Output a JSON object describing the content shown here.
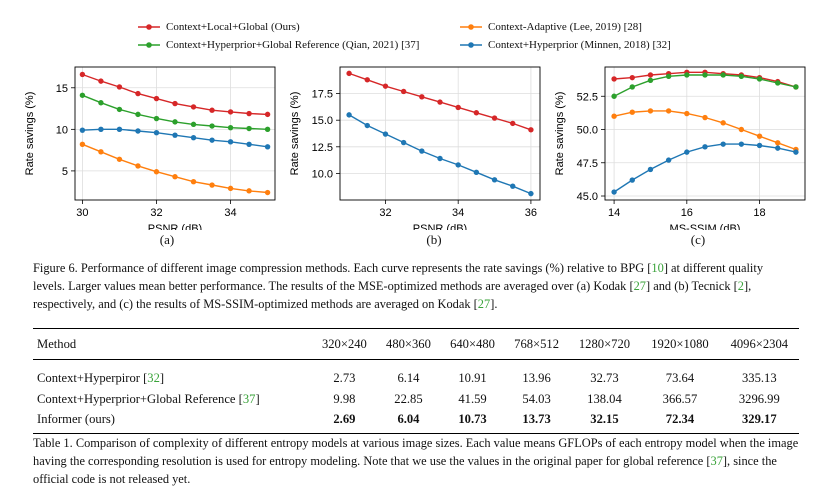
{
  "legend": {
    "items": [
      {
        "label": "Context+Local+Global (Ours)",
        "color": "#d62728"
      },
      {
        "label": "Context-Adaptive (Lee, 2019) [28]",
        "color": "#ff7f0e"
      },
      {
        "label": "Context+Hyperprior+Global Reference (Qian, 2021) [37]",
        "color": "#2ca02c"
      },
      {
        "label": "Context+Hyperprior (Minnen, 2018) [32]",
        "color": "#1f77b4"
      }
    ]
  },
  "chart_data": [
    {
      "type": "line",
      "panel_label": "(a)",
      "xlabel": "PSNR (dB)",
      "ylabel": "Rate savings (%)",
      "xlim": [
        29.8,
        35.2
      ],
      "ylim": [
        1.5,
        17.5
      ],
      "xticks": [
        30,
        32,
        34
      ],
      "yticks": [
        0,
        5,
        10,
        15
      ],
      "grid": true,
      "series": [
        {
          "name": "Context+Local+Global (Ours)",
          "color": "#d62728",
          "x": [
            30.0,
            30.5,
            31.0,
            31.5,
            32.0,
            32.5,
            33.0,
            33.5,
            34.0,
            34.5,
            35.0
          ],
          "y": [
            16.6,
            15.8,
            15.1,
            14.3,
            13.7,
            13.1,
            12.7,
            12.3,
            12.1,
            11.9,
            11.8
          ]
        },
        {
          "name": "Context+Hyperprior+Global Reference (Qian, 2021) [37]",
          "color": "#2ca02c",
          "x": [
            30.0,
            30.5,
            31.0,
            31.5,
            32.0,
            32.5,
            33.0,
            33.5,
            34.0,
            34.5,
            35.0
          ],
          "y": [
            14.1,
            13.2,
            12.4,
            11.8,
            11.3,
            10.9,
            10.6,
            10.4,
            10.2,
            10.1,
            10.0
          ]
        },
        {
          "name": "Context+Hyperprior (Minnen, 2018) [32]",
          "color": "#1f77b4",
          "x": [
            30.0,
            30.5,
            31.0,
            31.5,
            32.0,
            32.5,
            33.0,
            33.5,
            34.0,
            34.5,
            35.0
          ],
          "y": [
            9.9,
            10.0,
            10.0,
            9.8,
            9.6,
            9.3,
            9.0,
            8.7,
            8.5,
            8.2,
            7.9
          ]
        },
        {
          "name": "Context-Adaptive (Lee, 2019) [28]",
          "color": "#ff7f0e",
          "x": [
            30.0,
            30.5,
            31.0,
            31.5,
            32.0,
            32.5,
            33.0,
            33.5,
            34.0,
            34.5,
            35.0
          ],
          "y": [
            8.2,
            7.3,
            6.4,
            5.6,
            4.9,
            4.3,
            3.7,
            3.3,
            2.9,
            2.6,
            2.4
          ]
        }
      ]
    },
    {
      "type": "line",
      "panel_label": "(b)",
      "xlabel": "PSNR (dB)",
      "ylabel": "Rate savings (%)",
      "xlim": [
        30.75,
        36.25
      ],
      "ylim": [
        7.5,
        20.0
      ],
      "xticks": [
        32,
        34,
        36
      ],
      "yticks": [
        10.0,
        12.5,
        15.0,
        17.5
      ],
      "grid": true,
      "series": [
        {
          "name": "Context+Local+Global (Ours)",
          "color": "#d62728",
          "x": [
            31.0,
            31.5,
            32.0,
            32.5,
            33.0,
            33.5,
            34.0,
            34.5,
            35.0,
            35.5,
            36.0
          ],
          "y": [
            19.4,
            18.8,
            18.2,
            17.7,
            17.2,
            16.7,
            16.2,
            15.7,
            15.2,
            14.7,
            14.1
          ]
        },
        {
          "name": "Context+Hyperprior (Minnen, 2018) [32]",
          "color": "#1f77b4",
          "x": [
            31.0,
            31.5,
            32.0,
            32.5,
            33.0,
            33.5,
            34.0,
            34.5,
            35.0,
            35.5,
            36.0
          ],
          "y": [
            15.5,
            14.5,
            13.7,
            12.9,
            12.1,
            11.4,
            10.8,
            10.1,
            9.4,
            8.8,
            8.1
          ]
        }
      ]
    },
    {
      "type": "line",
      "panel_label": "(c)",
      "xlabel": "MS-SSIM (dB)",
      "ylabel": "Rate savings (%)",
      "xlim": [
        13.75,
        19.25
      ],
      "ylim": [
        44.7,
        54.7
      ],
      "xticks": [
        14,
        16,
        18
      ],
      "yticks": [
        45.0,
        47.5,
        50.0,
        52.5
      ],
      "grid": true,
      "series": [
        {
          "name": "Context+Local+Global (Ours)",
          "color": "#d62728",
          "x": [
            14.0,
            14.5,
            15.0,
            15.5,
            16.0,
            16.5,
            17.0,
            17.5,
            18.0,
            18.5,
            19.0
          ],
          "y": [
            53.8,
            53.9,
            54.1,
            54.2,
            54.3,
            54.3,
            54.2,
            54.1,
            53.9,
            53.6,
            53.2
          ]
        },
        {
          "name": "Context+Hyperprior+Global Reference (Qian, 2021) [37]",
          "color": "#2ca02c",
          "x": [
            14.0,
            14.5,
            15.0,
            15.5,
            16.0,
            16.5,
            17.0,
            17.5,
            18.0,
            18.5,
            19.0
          ],
          "y": [
            52.5,
            53.2,
            53.7,
            54.0,
            54.1,
            54.1,
            54.1,
            54.0,
            53.8,
            53.5,
            53.2
          ]
        },
        {
          "name": "Context-Adaptive (Lee, 2019) [28]",
          "color": "#ff7f0e",
          "x": [
            14.0,
            14.5,
            15.0,
            15.5,
            16.0,
            16.5,
            17.0,
            17.5,
            18.0,
            18.5,
            19.0
          ],
          "y": [
            51.0,
            51.3,
            51.4,
            51.4,
            51.2,
            50.9,
            50.5,
            50.0,
            49.5,
            49.0,
            48.5
          ]
        },
        {
          "name": "Context+Hyperprior (Minnen, 2018) [32]",
          "color": "#1f77b4",
          "x": [
            14.0,
            14.5,
            15.0,
            15.5,
            16.0,
            16.5,
            17.0,
            17.5,
            18.0,
            18.5,
            19.0
          ],
          "y": [
            45.3,
            46.2,
            47.0,
            47.7,
            48.3,
            48.7,
            48.9,
            48.9,
            48.8,
            48.6,
            48.3
          ]
        }
      ]
    }
  ],
  "figure_caption": {
    "p1": "Figure 6. Performance of different image compression methods. Each curve represents the rate savings (%) relative to BPG [",
    "c1": "10",
    "p2": "] at different quality levels. Larger values mean better performance. The results of the MSE-optimized methods are averaged over (a) Kodak [",
    "c2": "27",
    "p3": "] and (b) Tecnick [",
    "c3": "2",
    "p4": "], respectively, and (c) the results of MS-SSIM-optimized methods are averaged on Kodak [",
    "c4": "27",
    "p5": "]."
  },
  "table": {
    "headers": [
      "Method",
      "320×240",
      "480×360",
      "640×480",
      "768×512",
      "1280×720",
      "1920×1080",
      "4096×2304"
    ],
    "rows": [
      {
        "method": "Context+Hyperpiror [",
        "cite": "32",
        "method_end": "]",
        "values": [
          "2.73",
          "6.14",
          "10.91",
          "13.96",
          "32.73",
          "73.64",
          "335.13"
        ]
      },
      {
        "method": "Context+Hyperprior+Global Reference [",
        "cite": "37",
        "method_end": "]",
        "values": [
          "9.98",
          "22.85",
          "41.59",
          "54.03",
          "138.04",
          "366.57",
          "3296.99"
        ]
      },
      {
        "method": "Informer (ours)",
        "cite": "",
        "method_end": "",
        "values": [
          "2.69",
          "6.04",
          "10.73",
          "13.73",
          "32.15",
          "72.34",
          "329.17"
        ]
      }
    ]
  },
  "table_caption": {
    "p1": "Table 1. Comparison of complexity of different entropy models at various image sizes. Each value means GFLOPs of each entropy model when the image having the corresponding resolution is used for entropy modeling. Note that we use the values in the original paper for global reference [",
    "c1": "37",
    "p2": "], since the official code is not released yet."
  }
}
